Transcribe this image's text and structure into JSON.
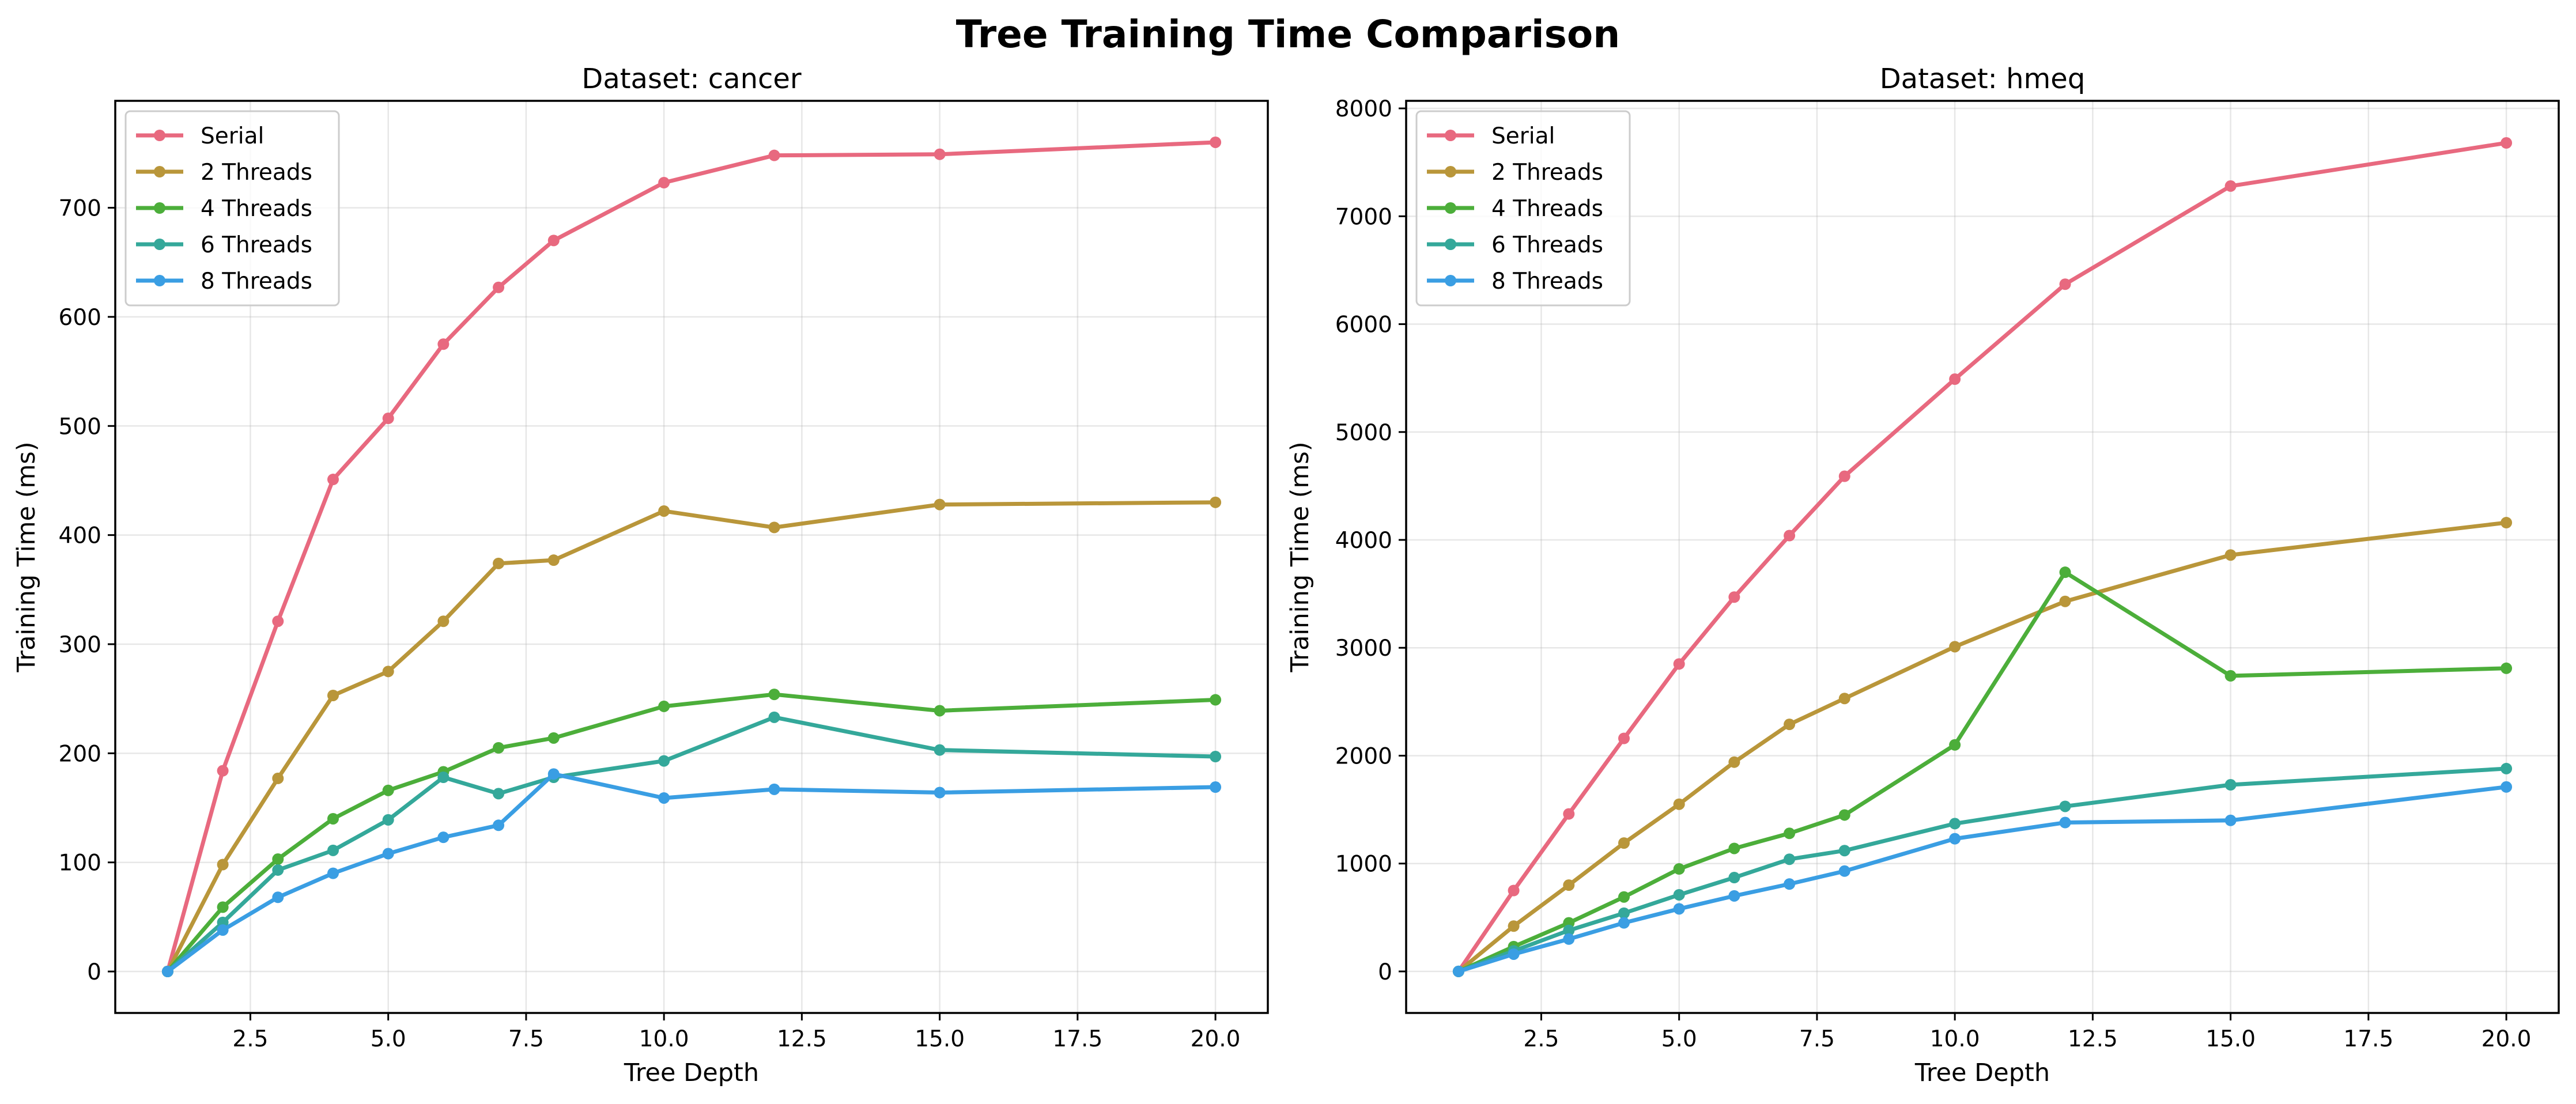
{
  "figure": {
    "title": "Tree Training Time Comparison"
  },
  "chart_data": [
    {
      "type": "line",
      "title": "Dataset: cancer",
      "xlabel": "Tree Depth",
      "ylabel": "Training Time (ms)",
      "xlim": [
        0.05,
        20.95
      ],
      "ylim": [
        -38,
        798
      ],
      "xticks": [
        2.5,
        5.0,
        7.5,
        10.0,
        12.5,
        15.0,
        17.5,
        20.0
      ],
      "xtick_labels": [
        "2.5",
        "5.0",
        "7.5",
        "10.0",
        "12.5",
        "15.0",
        "17.5",
        "20.0"
      ],
      "yticks": [
        0,
        100,
        200,
        300,
        400,
        500,
        600,
        700
      ],
      "ytick_labels": [
        "0",
        "100",
        "200",
        "300",
        "400",
        "500",
        "600",
        "700"
      ],
      "grid": true,
      "legend_position": "top-left",
      "x": [
        1,
        2,
        3,
        4,
        5,
        6,
        7,
        8,
        10,
        12,
        15,
        20
      ],
      "series": [
        {
          "name": "Serial",
          "color": "#e8697f",
          "values": [
            0,
            184,
            321,
            451,
            507,
            575,
            627,
            670,
            723,
            748,
            749,
            760
          ]
        },
        {
          "name": "2 Threads",
          "color": "#b9963a",
          "values": [
            0,
            98,
            177,
            253,
            275,
            321,
            374,
            377,
            422,
            407,
            428,
            430
          ]
        },
        {
          "name": "4 Threads",
          "color": "#4cae3a",
          "values": [
            0,
            59,
            103,
            140,
            166,
            183,
            205,
            214,
            243,
            254,
            239,
            249
          ]
        },
        {
          "name": "6 Threads",
          "color": "#34a89a",
          "values": [
            0,
            45,
            93,
            111,
            139,
            178,
            163,
            178,
            193,
            233,
            203,
            197
          ]
        },
        {
          "name": "8 Threads",
          "color": "#3a9ee3",
          "values": [
            0,
            38,
            68,
            90,
            108,
            123,
            134,
            181,
            159,
            167,
            164,
            169
          ]
        }
      ]
    },
    {
      "type": "line",
      "title": "Dataset: hmeq",
      "xlabel": "Tree Depth",
      "ylabel": "Training Time (ms)",
      "xlim": [
        0.05,
        20.95
      ],
      "ylim": [
        -385,
        8070
      ],
      "xticks": [
        2.5,
        5.0,
        7.5,
        10.0,
        12.5,
        15.0,
        17.5,
        20.0
      ],
      "xtick_labels": [
        "2.5",
        "5.0",
        "7.5",
        "10.0",
        "12.5",
        "15.0",
        "17.5",
        "20.0"
      ],
      "yticks": [
        0,
        1000,
        2000,
        3000,
        4000,
        5000,
        6000,
        7000,
        8000
      ],
      "ytick_labels": [
        "0",
        "1000",
        "2000",
        "3000",
        "4000",
        "5000",
        "6000",
        "7000",
        "8000"
      ],
      "grid": true,
      "legend_position": "top-left",
      "x": [
        1,
        2,
        3,
        4,
        5,
        6,
        7,
        8,
        10,
        12,
        15,
        20
      ],
      "series": [
        {
          "name": "Serial",
          "color": "#e8697f",
          "values": [
            0,
            750,
            1460,
            2160,
            2850,
            3470,
            4040,
            4590,
            5490,
            6370,
            7280,
            7680
          ]
        },
        {
          "name": "2 Threads",
          "color": "#b9963a",
          "values": [
            0,
            420,
            800,
            1190,
            1550,
            1940,
            2290,
            2530,
            3010,
            3430,
            3860,
            4160
          ]
        },
        {
          "name": "4 Threads",
          "color": "#4cae3a",
          "values": [
            0,
            230,
            450,
            690,
            950,
            1140,
            1280,
            1450,
            2100,
            3700,
            2740,
            2810
          ]
        },
        {
          "name": "6 Threads",
          "color": "#34a89a",
          "values": [
            0,
            190,
            380,
            540,
            710,
            870,
            1040,
            1120,
            1370,
            1530,
            1730,
            1880
          ]
        },
        {
          "name": "8 Threads",
          "color": "#3a9ee3",
          "values": [
            0,
            160,
            300,
            450,
            580,
            700,
            810,
            930,
            1230,
            1380,
            1400,
            1710
          ]
        }
      ]
    }
  ]
}
